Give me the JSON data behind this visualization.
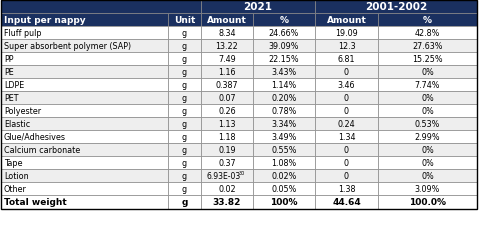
{
  "header_row": [
    "Input per nappy",
    "Unit",
    "Amount",
    "%",
    "Amount",
    "%"
  ],
  "rows": [
    [
      "Fluff pulp",
      "g",
      "8.34",
      "24.66%",
      "19.09",
      "42.8%"
    ],
    [
      "Super absorbent polymer (SAP)",
      "g",
      "13.22",
      "39.09%",
      "12.3",
      "27.63%"
    ],
    [
      "PP",
      "g",
      "7.49",
      "22.15%",
      "6.81",
      "15.25%"
    ],
    [
      "PE",
      "g",
      "1.16",
      "3.43%",
      "0",
      "0%"
    ],
    [
      "LDPE",
      "g",
      "0.387",
      "1.14%",
      "3.46",
      "7.74%"
    ],
    [
      "PET",
      "g",
      "0.07",
      "0.20%",
      "0",
      "0%"
    ],
    [
      "Polyester",
      "g",
      "0.26",
      "0.78%",
      "0",
      "0%"
    ],
    [
      "Elastic",
      "g",
      "1.13",
      "3.34%",
      "0.24",
      "0.53%"
    ],
    [
      "Glue/Adhesives",
      "g",
      "1.18",
      "3.49%",
      "1.34",
      "2.99%"
    ],
    [
      "Calcium carbonate",
      "g",
      "0.19",
      "0.55%",
      "0",
      "0%"
    ],
    [
      "Tape",
      "g",
      "0.37",
      "1.08%",
      "0",
      "0%"
    ],
    [
      "Lotion",
      "g",
      "6.93E-03",
      "0.02%",
      "0",
      "0%"
    ],
    [
      "Other",
      "g",
      "0.02",
      "0.05%",
      "1.38",
      "3.09%"
    ]
  ],
  "total_row": [
    "Total weight",
    "g",
    "33.82",
    "100%",
    "44.64",
    "100.0%"
  ],
  "header_bg": "#1a3060",
  "header_fg": "#ffffff",
  "border_color": "#888888",
  "lotion_superscript": "30"
}
